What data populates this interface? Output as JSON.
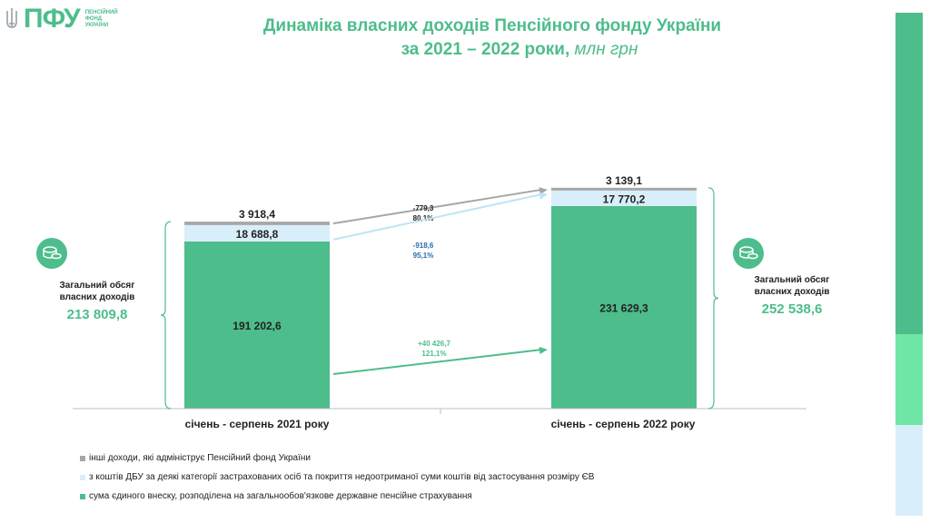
{
  "logo": {
    "text": "ПФУ",
    "sub": [
      "ПЕНСІЙНИЙ",
      "ФОНД",
      "УКРАЇНИ"
    ]
  },
  "title_line1": "Динаміка власних доходів Пенсійного фонду України",
  "title_line2": "за 2021 – 2022 роки,",
  "title_unit": "млн грн",
  "colors": {
    "accent": "#4dbd8b",
    "light_blue": "#d8eefb",
    "gray": "#a6a6a6",
    "sidebar_mid": "#6fe6a5"
  },
  "chart_data": {
    "type": "bar",
    "stacked": true,
    "categories": [
      "січень - серпень 2021 року",
      "січень - серпень 2022 року"
    ],
    "series": [
      {
        "name": "сума єдиного внеску, розподілена на загальнообов'язкове державне пенсійне страхування",
        "values": [
          191202.6,
          231629.3
        ],
        "labels": [
          "191 202,6",
          "231 629,3"
        ],
        "color": "#4dbd8b"
      },
      {
        "name": "з коштів ДБУ за деякі категорії застрахованих осіб та покриття недоотриманої суми коштів від застосування розміру ЄВ",
        "values": [
          18688.8,
          17770.2
        ],
        "labels": [
          "18 688,8",
          "17 770,2"
        ],
        "color": "#d8eefb"
      },
      {
        "name": "інші доходи, які адмініструє Пенсійний фонд України",
        "values": [
          3918.4,
          3139.1
        ],
        "labels": [
          "3 918,4",
          "3 139,1"
        ],
        "color": "#a6a6a6"
      }
    ],
    "changes": [
      {
        "series": 2,
        "delta": "-779,3",
        "pct": "80,1%"
      },
      {
        "series": 1,
        "delta": "-918,6",
        "pct": "95,1%"
      },
      {
        "series": 0,
        "delta": "+40 426,7",
        "pct": "121,1%"
      }
    ],
    "totals": [
      {
        "label": "Загальний обсяг власних доходів",
        "value": "213 809,8"
      },
      {
        "label": "Загальний обсяг власних доходів",
        "value": "252 538,6"
      }
    ],
    "legend_position": "bottom-left"
  }
}
